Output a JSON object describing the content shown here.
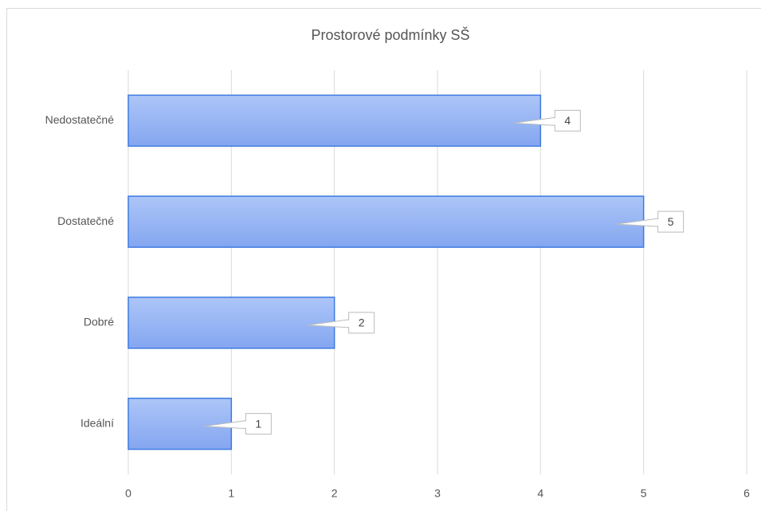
{
  "chart_data": {
    "type": "barh",
    "title": "Prostorové podmínky SŠ",
    "categories": [
      "Nedostatečné",
      "Dostatečné",
      "Dobré",
      "Ideální"
    ],
    "values": [
      4,
      5,
      2,
      1
    ],
    "color": "#8aabf2",
    "xlim": [
      0,
      6
    ],
    "xticks": [
      0,
      1,
      2,
      3,
      4,
      5,
      6
    ],
    "grid": true
  }
}
